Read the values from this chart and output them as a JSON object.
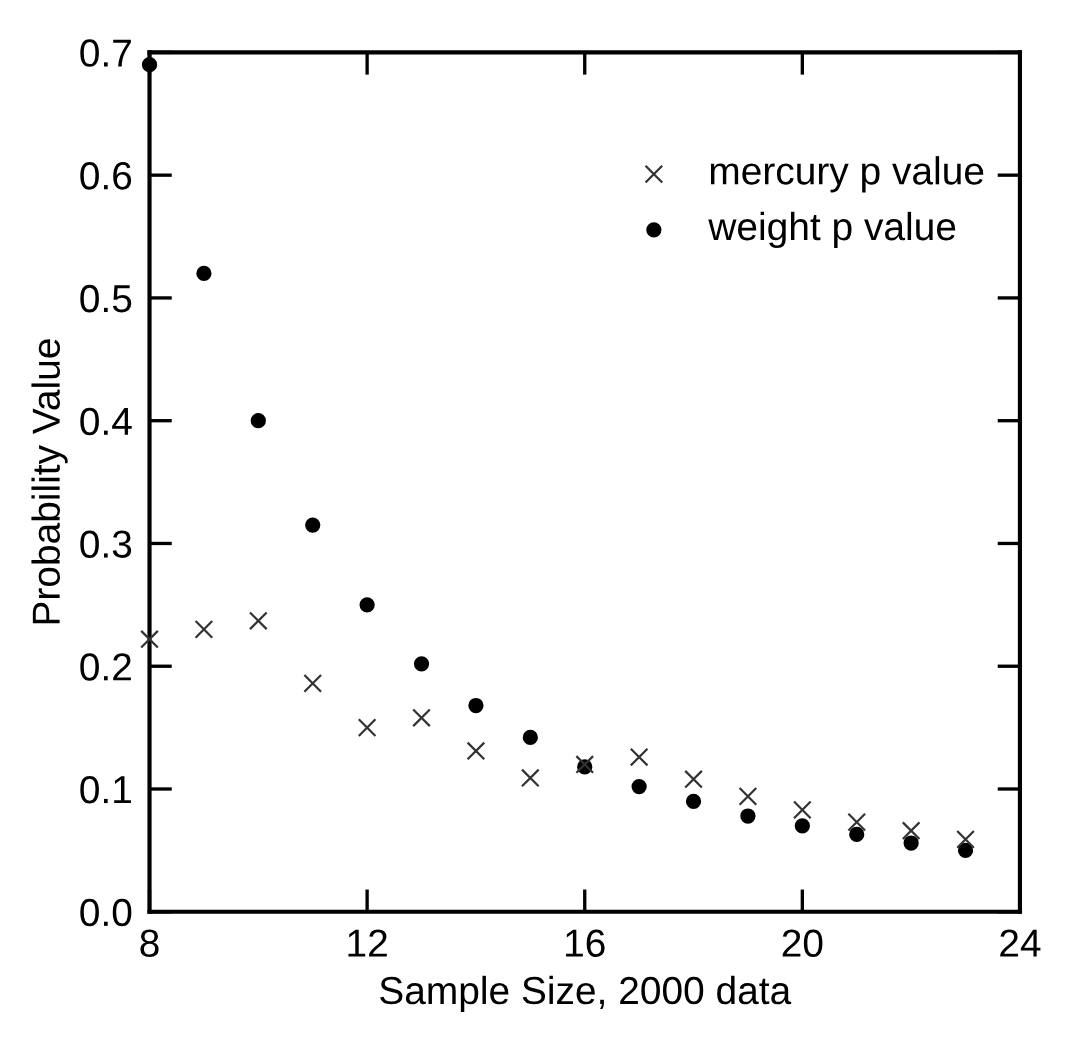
{
  "chart_data": {
    "type": "scatter",
    "xlabel": "Sample Size, 2000 data",
    "ylabel": "Probability Value",
    "x": [
      8,
      9,
      10,
      11,
      12,
      13,
      14,
      15,
      16,
      17,
      18,
      19,
      20,
      21,
      22,
      23
    ],
    "series": [
      {
        "name": "mercury p value",
        "color": "#333333",
        "marker": "cross",
        "values": [
          0.222,
          0.23,
          0.237,
          0.186,
          0.15,
          0.158,
          0.131,
          0.109,
          0.12,
          0.126,
          0.108,
          0.094,
          0.083,
          0.073,
          0.066,
          0.059
        ]
      },
      {
        "name": "weight p value",
        "color": "#000000",
        "marker": "circle",
        "values": [
          0.69,
          0.52,
          0.4,
          0.315,
          0.25,
          0.202,
          0.168,
          0.142,
          0.118,
          0.102,
          0.09,
          0.078,
          0.07,
          0.063,
          0.056,
          0.05
        ]
      }
    ],
    "xlim": [
      8,
      24
    ],
    "xticks": [
      8,
      12,
      16,
      20,
      24
    ],
    "ylim": [
      0,
      0.7
    ],
    "yticks": [
      {
        "value": 0,
        "label": "0.0"
      },
      {
        "value": 0.1,
        "label": "0.1"
      },
      {
        "value": 0.2,
        "label": "0.2"
      },
      {
        "value": 0.3,
        "label": "0.3"
      },
      {
        "value": 0.4,
        "label": "0.4"
      },
      {
        "value": 0.5,
        "label": "0.5"
      },
      {
        "value": 0.6,
        "label": "0.6"
      },
      {
        "value": 0.7,
        "label": "0.7"
      }
    ],
    "grid": false,
    "legend": "top right"
  }
}
